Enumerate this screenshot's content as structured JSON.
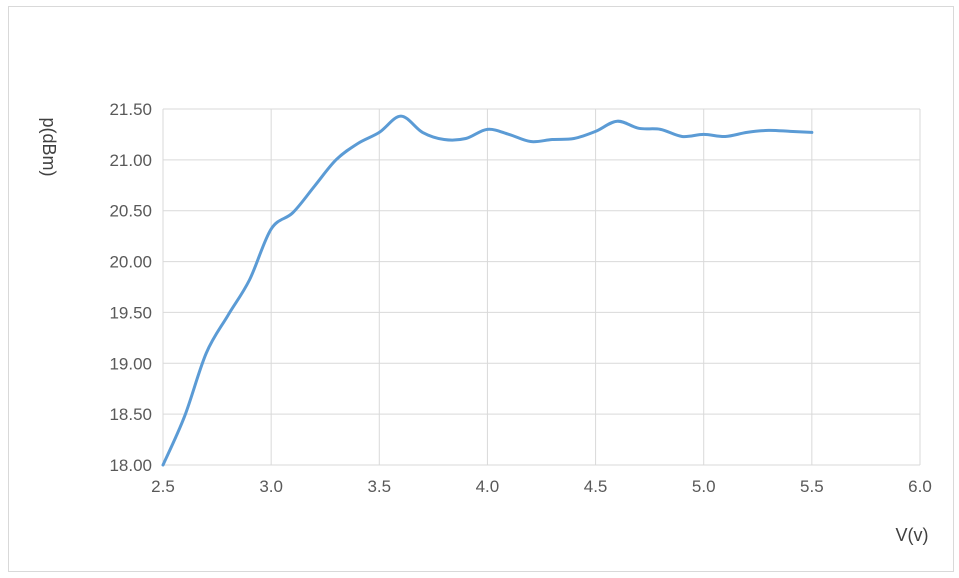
{
  "chart_data": {
    "type": "line",
    "title": "",
    "xlabel": "V(v)",
    "ylabel": "p(dBm)",
    "xlim": [
      2.5,
      6.0
    ],
    "ylim": [
      18.0,
      21.5
    ],
    "x_ticks": [
      "2.5",
      "3.0",
      "3.5",
      "4.0",
      "4.5",
      "5.0",
      "5.5",
      "6.0"
    ],
    "y_ticks": [
      "18.00",
      "18.50",
      "19.00",
      "19.50",
      "20.00",
      "20.50",
      "21.00",
      "21.50"
    ],
    "grid": true,
    "legend": "none",
    "series_color": "#5b9bd5",
    "grid_color": "#d9d9d9",
    "series": [
      {
        "x": [
          2.5,
          2.6,
          2.7,
          2.8,
          2.9,
          3.0,
          3.1,
          3.2,
          3.3,
          3.4,
          3.5,
          3.6,
          3.7,
          3.8,
          3.9,
          4.0,
          4.1,
          4.2,
          4.3,
          4.4,
          4.5,
          4.6,
          4.7,
          4.8,
          4.9,
          5.0,
          5.1,
          5.2,
          5.3,
          5.4,
          5.5
        ],
        "y": [
          18.0,
          18.48,
          19.1,
          19.47,
          19.82,
          20.32,
          20.48,
          20.74,
          21.0,
          21.16,
          21.27,
          21.43,
          21.27,
          21.2,
          21.21,
          21.3,
          21.25,
          21.18,
          21.2,
          21.21,
          21.28,
          21.38,
          21.31,
          21.3,
          21.23,
          21.25,
          21.23,
          21.27,
          21.29,
          21.28,
          21.27
        ]
      }
    ]
  }
}
